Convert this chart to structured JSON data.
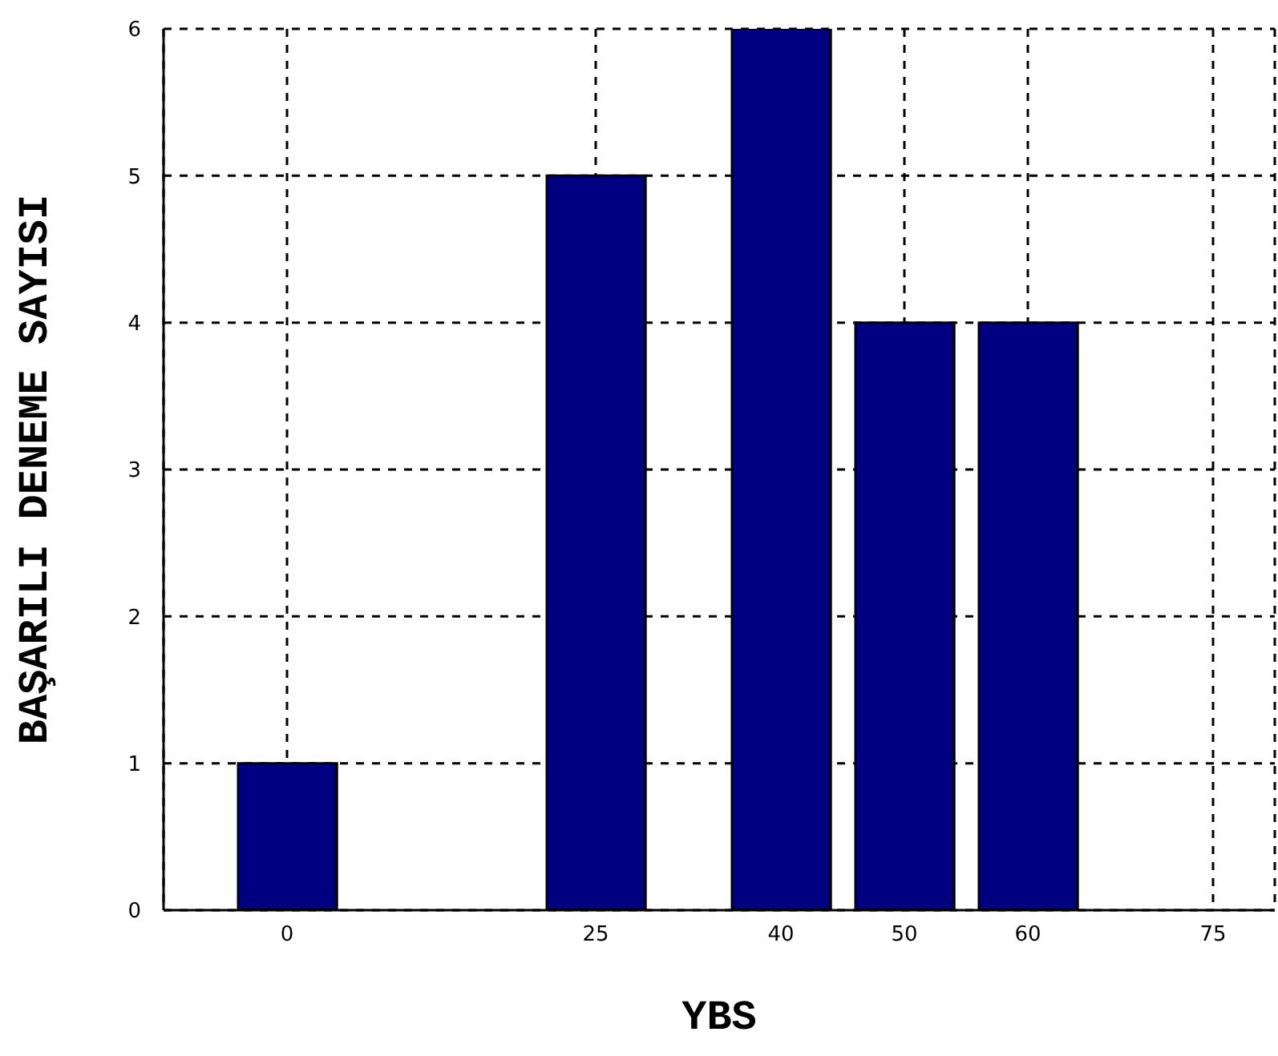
{
  "chart_data": {
    "type": "bar",
    "xlabel": "YBS",
    "ylabel": "BAŞARILI DENEME SAYISI",
    "x": [
      0,
      25,
      40,
      50,
      60,
      75
    ],
    "values": [
      1,
      5,
      6,
      4,
      4,
      0
    ],
    "color": "#000080",
    "xlim": [
      -10,
      80
    ],
    "xticks": [
      0,
      25,
      40,
      50,
      60,
      75
    ],
    "ylim": [
      0,
      6
    ],
    "yticks": [
      0,
      1,
      2,
      3,
      4,
      5,
      6
    ],
    "grid": true
  }
}
